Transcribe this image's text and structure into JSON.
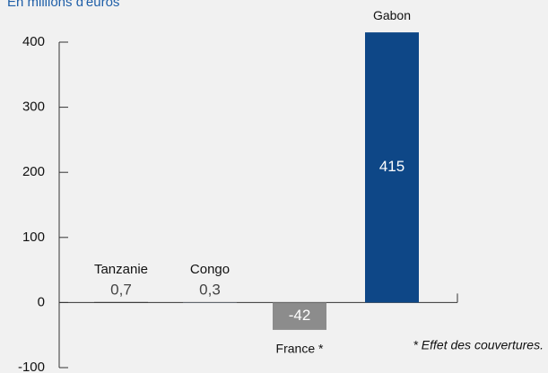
{
  "chart_data": {
    "type": "bar",
    "subtitle": "En millions d'euros",
    "categories": [
      "Tanzanie",
      "Congo",
      "France *",
      "Gabon"
    ],
    "values": [
      0.7,
      0.3,
      -42,
      415
    ],
    "value_labels": [
      "0,7",
      "0,3",
      "-42",
      "415"
    ],
    "colors": [
      "#111111",
      "#9fb6d6",
      "#8c8c8c",
      "#0e4787"
    ],
    "ylim": [
      -100,
      400
    ],
    "yticks": [
      -100,
      0,
      100,
      200,
      300,
      400
    ],
    "annotation": "* Effet des couvertures."
  }
}
